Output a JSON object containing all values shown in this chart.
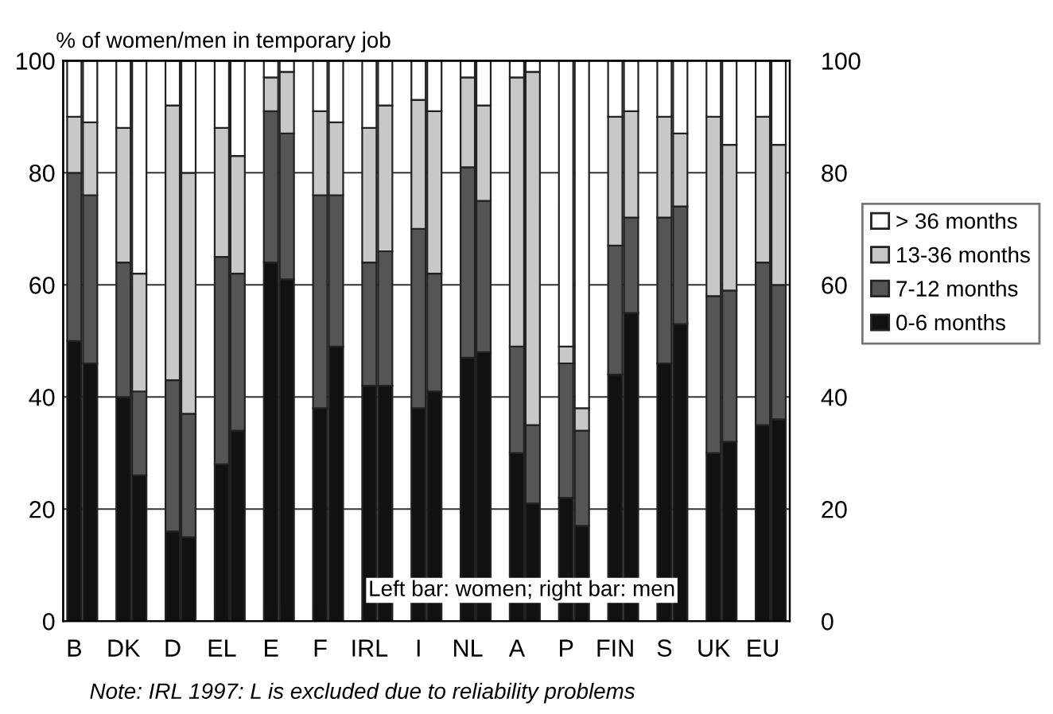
{
  "chart_data": {
    "type": "bar",
    "stacked": true,
    "ylabel": "% of women/men in temporary job",
    "categories": [
      "B",
      null,
      "DK",
      null,
      "D",
      null,
      "EL",
      null,
      "E",
      null,
      "F",
      null,
      "IRL",
      null,
      "I",
      null,
      "NL",
      null,
      "A",
      null,
      "P",
      null,
      "FIN",
      null,
      "S",
      null,
      "UK",
      null,
      "EU",
      null
    ],
    "series": [
      {
        "name": "0-6 months",
        "color": "#111111",
        "values": [
          50,
          46,
          40,
          26,
          16,
          15,
          28,
          34,
          64,
          61,
          38,
          49,
          42,
          42,
          38,
          41,
          47,
          48,
          30,
          21,
          22,
          17,
          44,
          55,
          46,
          53,
          30,
          32,
          35,
          36
        ]
      },
      {
        "name": "7-12 months",
        "color": "#555555",
        "values": [
          30,
          30,
          24,
          15,
          27,
          22,
          37,
          28,
          27,
          26,
          38,
          27,
          22,
          24,
          32,
          21,
          34,
          27,
          19,
          14,
          24,
          17,
          23,
          17,
          26,
          21,
          28,
          27,
          29,
          24
        ]
      },
      {
        "name": "13-36 months",
        "color": "#c8c8c8",
        "values": [
          10,
          13,
          24,
          21,
          49,
          43,
          23,
          21,
          6,
          11,
          15,
          13,
          24,
          26,
          23,
          29,
          16,
          17,
          48,
          63,
          3,
          4,
          23,
          19,
          18,
          13,
          32,
          26,
          26,
          25
        ]
      },
      {
        "name": "> 36 months",
        "color": "#ffffff",
        "values": [
          10,
          11,
          12,
          38,
          8,
          20,
          12,
          17,
          3,
          2,
          9,
          11,
          12,
          8,
          7,
          9,
          3,
          8,
          3,
          2,
          51,
          62,
          10,
          9,
          10,
          13,
          10,
          15,
          10,
          15
        ]
      }
    ],
    "ylim": [
      0,
      100
    ],
    "yticks": [
      0,
      20,
      40,
      60,
      80,
      100
    ],
    "y2lim": [
      0,
      100
    ],
    "y2ticks": [
      0,
      20,
      40,
      60,
      80,
      100
    ],
    "grid": "y",
    "legend": "right",
    "annotations": [
      "Left bar: women; right bar: men",
      "Note: IRL 1997: L is excluded due to reliability problems"
    ]
  }
}
